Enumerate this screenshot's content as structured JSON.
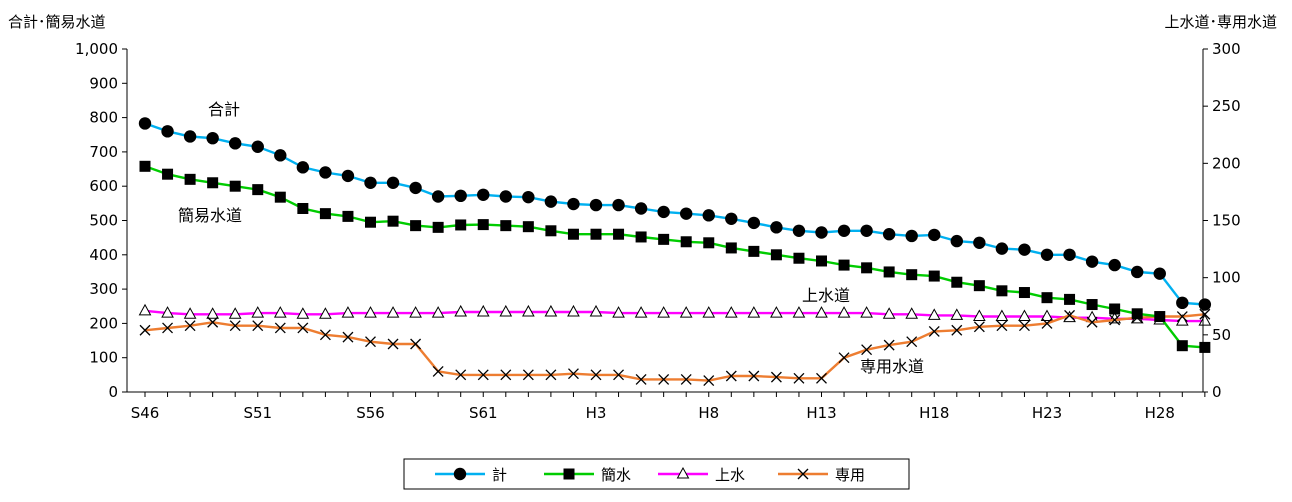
{
  "chart_data": {
    "type": "line",
    "y_left_label": "合計･簡易水道",
    "y_right_label": "上水道･専用水道",
    "ylim_left": [
      0,
      1000
    ],
    "ylim_right": [
      0,
      300
    ],
    "y_left_ticks": [
      "0",
      "100",
      "200",
      "300",
      "400",
      "500",
      "600",
      "700",
      "800",
      "900",
      "1,000"
    ],
    "y_right_ticks": [
      "0",
      "50",
      "100",
      "150",
      "200",
      "250",
      "300"
    ],
    "x_tick_labels": [
      "S46",
      "S51",
      "S56",
      "S61",
      "H3",
      "H8",
      "H13",
      "H18",
      "H23",
      "H28"
    ],
    "x_count": 46,
    "grid": false,
    "legend_position": "bottom",
    "series": [
      {
        "name": "計",
        "axis": "left",
        "color": "#00B0F0",
        "marker": "circle",
        "values": [
          783,
          760,
          745,
          740,
          725,
          715,
          690,
          655,
          640,
          630,
          610,
          610,
          595,
          570,
          572,
          575,
          570,
          568,
          555,
          548,
          545,
          545,
          535,
          525,
          520,
          515,
          505,
          493,
          480,
          470,
          465,
          470,
          470,
          460,
          455,
          458,
          440,
          435,
          418,
          415,
          400,
          400,
          380,
          370,
          350,
          345
        ]
      },
      {
        "name": "簡水",
        "axis": "left",
        "color": "#00CC00",
        "marker": "square",
        "values": [
          658,
          635,
          620,
          610,
          600,
          590,
          568,
          535,
          520,
          512,
          495,
          498,
          485,
          480,
          487,
          488,
          485,
          482,
          470,
          460,
          460,
          460,
          452,
          445,
          438,
          435,
          420,
          410,
          400,
          390,
          382,
          370,
          362,
          350,
          342,
          338,
          320,
          310,
          295,
          290,
          275,
          270,
          255,
          242,
          228,
          220
        ]
      },
      {
        "name": "上水",
        "axis": "right",
        "color": "#FF00FF",
        "marker": "triangle",
        "values": [
          71,
          69,
          68,
          68,
          68,
          69,
          69,
          68,
          68,
          69,
          69,
          69,
          69,
          69,
          70,
          70,
          70,
          70,
          70,
          70,
          70,
          69,
          69,
          69,
          69,
          69,
          69,
          69,
          69,
          69,
          69,
          69,
          69,
          68,
          68,
          67,
          67,
          66,
          66,
          66,
          66,
          65,
          65,
          64,
          64,
          63
        ]
      },
      {
        "name": "専用",
        "axis": "right",
        "color": "#ED7D31",
        "marker": "x",
        "values": [
          54,
          56,
          58,
          61,
          58,
          58,
          56,
          56,
          50,
          48,
          44,
          42,
          42,
          18,
          15,
          15,
          15,
          15,
          15,
          16,
          15,
          15,
          11,
          11,
          11,
          10,
          14,
          14,
          13,
          12,
          12,
          30,
          37,
          41,
          44,
          53,
          54,
          57,
          58,
          58,
          60,
          67,
          61,
          63,
          65,
          66
        ]
      }
    ],
    "tail_x_count": 2,
    "tail_series": [
      {
        "name": "計",
        "values": [
          260,
          255
        ]
      },
      {
        "name": "簡水",
        "values": [
          135,
          130
        ]
      },
      {
        "name": "上水",
        "values": [
          62,
          62
        ]
      },
      {
        "name": "専用",
        "values": [
          66,
          68
        ]
      }
    ],
    "annotations": [
      {
        "text": "合計"
      },
      {
        "text": "簡易水道"
      },
      {
        "text": "上水道"
      },
      {
        "text": "専用水道"
      }
    ]
  }
}
